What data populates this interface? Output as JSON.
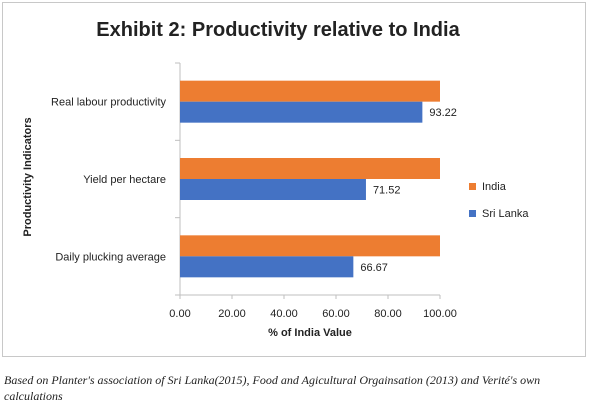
{
  "chart_data": {
    "type": "bar",
    "orientation": "horizontal",
    "title": "Exhibit 2: Productivity relative to India",
    "xlabel": "% of India Value",
    "ylabel": "Productivity Indicators",
    "categories": [
      "Real labour productivity",
      "Yield per hectare",
      "Daily plucking average"
    ],
    "series": [
      {
        "name": "India",
        "values": [
          100,
          100,
          100
        ],
        "color": "#ED7D31",
        "show_labels": false
      },
      {
        "name": "Sri Lanka",
        "values": [
          93.22,
          71.52,
          66.67
        ],
        "color": "#4472C4",
        "show_labels": true
      }
    ],
    "data_labels": [
      "93.22",
      "71.52",
      "66.67"
    ],
    "xlim": [
      0,
      100
    ],
    "xticks": [
      "0.00",
      "20.00",
      "40.00",
      "60.00",
      "80.00",
      "100.00"
    ],
    "grid": false,
    "legend_position": "right"
  },
  "caption": "Based on Planter's association of Sri Lanka(2015), Food and Agicultural Orgainsation (2013) and Verité's own calculations"
}
